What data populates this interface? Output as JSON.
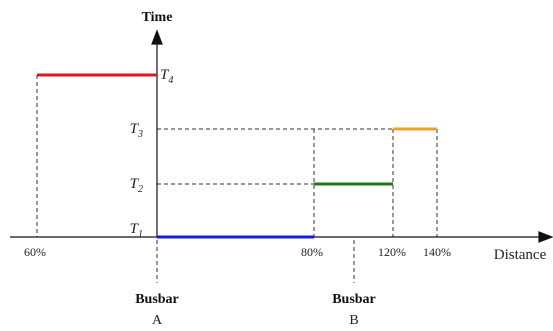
{
  "axes": {
    "y_title": "Time",
    "x_title": "Distance"
  },
  "time_labels": [
    {
      "main": "T",
      "sub": "1"
    },
    {
      "main": "T",
      "sub": "2"
    },
    {
      "main": "T",
      "sub": "3"
    },
    {
      "main": "T",
      "sub": "4"
    }
  ],
  "distance_ticks": [
    "60%",
    "80%",
    "120%",
    "140%"
  ],
  "busbars": [
    {
      "title": "Busbar",
      "letter": "A"
    },
    {
      "title": "Busbar",
      "letter": "B"
    }
  ],
  "colors": {
    "zone_reverse": "#e0141e",
    "zone1": "#1a1adc",
    "zone2": "#1f7a1f",
    "zone3": "#f5a020"
  }
}
